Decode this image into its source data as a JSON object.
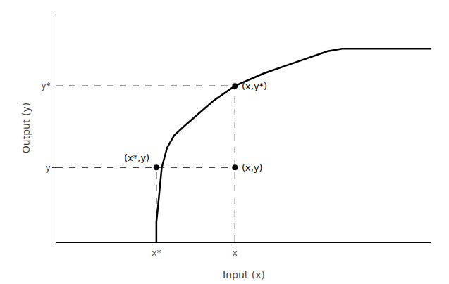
{
  "chart_data": {
    "type": "line",
    "xlabel": "Input (x)",
    "ylabel": "Output (y)",
    "x": [
      0.28,
      0.28,
      0.285,
      0.29,
      0.295,
      0.31,
      0.33,
      0.36,
      0.4,
      0.44,
      0.5,
      0.58,
      0.66,
      0.72,
      0.76,
      0.8,
      0.9,
      1.05
    ],
    "values": [
      0.0,
      0.08,
      0.15,
      0.22,
      0.3,
      0.38,
      0.43,
      0.47,
      0.52,
      0.57,
      0.63,
      0.68,
      0.72,
      0.75,
      0.77,
      0.78,
      0.78,
      0.78
    ],
    "color": "#000000",
    "xlim": [
      0.0,
      1.05
    ],
    "ylim": [
      0.0,
      0.92
    ],
    "xticks": [
      {
        "value": 0.28,
        "label": "x*"
      },
      {
        "value": 0.5,
        "label": "x"
      }
    ],
    "yticks": [
      {
        "value": 0.3,
        "label": "y"
      },
      {
        "value": 0.63,
        "label": "y*"
      }
    ],
    "grid": false,
    "points": {
      "type": "scatter",
      "marker": "circle",
      "color": "#000000",
      "x": [
        0.28,
        0.5,
        0.5
      ],
      "values": [
        0.3,
        0.3,
        0.63
      ]
    },
    "guides": {
      "line_style": "dashed",
      "color": "#444444",
      "segments": [
        {
          "x": [
            0,
            0.5
          ],
          "values": [
            0.63,
            0.63
          ]
        },
        {
          "x": [
            0.5,
            0.5
          ],
          "values": [
            0,
            0.63
          ]
        },
        {
          "x": [
            0,
            0.5
          ],
          "values": [
            0.3,
            0.3
          ]
        },
        {
          "x": [
            0.28,
            0.28
          ],
          "values": [
            0,
            0.3
          ]
        }
      ]
    },
    "annotations": {
      "color": "#000000",
      "items": [
        {
          "x": 0.28,
          "y": 0.3,
          "text": "(x*,y)"
        },
        {
          "x": 0.5,
          "y": 0.3,
          "text": "(x,y)"
        },
        {
          "x": 0.5,
          "y": 0.63,
          "text": "(x,y*)"
        }
      ]
    }
  }
}
